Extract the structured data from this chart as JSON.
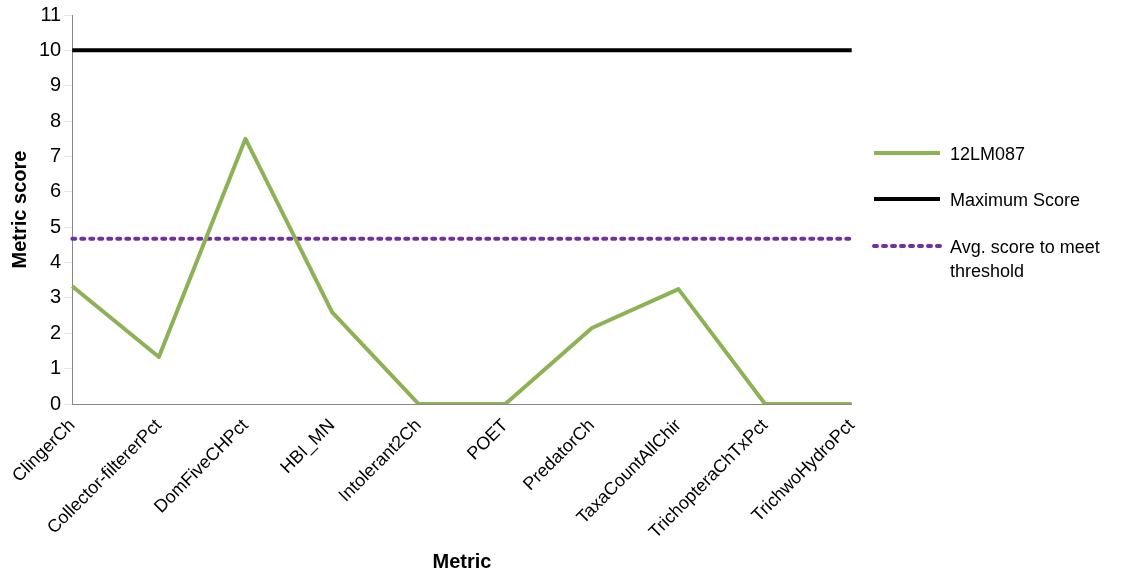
{
  "chart_data": {
    "type": "line",
    "xlabel": "Metric",
    "ylabel": "Metric score",
    "categories": [
      "ClingerCh",
      "Collector-filtererPct",
      "DomFiveCHPct",
      "HBI_MN",
      "Intolerant2Ch",
      "POET",
      "PredatorCh",
      "TaxaCountAllChir",
      "TrichopteraChTxPct",
      "TrichwoHydroPct"
    ],
    "series": [
      {
        "name": "12LM087",
        "color": "#8db255",
        "line_style": "solid",
        "values": [
          3.33,
          1.33,
          7.5,
          2.6,
          0,
          0,
          2.15,
          3.25,
          0,
          0
        ]
      },
      {
        "name": "Maximum Score",
        "color": "#000000",
        "line_style": "solid",
        "values": [
          10,
          10,
          10,
          10,
          10,
          10,
          10,
          10,
          10,
          10
        ]
      },
      {
        "name": "Avg. score to meet threshold",
        "color": "#7030a0",
        "line_style": "dotted",
        "values": [
          4.67,
          4.67,
          4.67,
          4.67,
          4.67,
          4.67,
          4.67,
          4.67,
          4.67,
          4.67
        ]
      }
    ],
    "ylim": [
      0,
      11
    ],
    "yticks": [
      0,
      1,
      2,
      3,
      4,
      5,
      6,
      7,
      8,
      9,
      10,
      11
    ],
    "grid": false,
    "legend": "right",
    "marker": "none"
  }
}
